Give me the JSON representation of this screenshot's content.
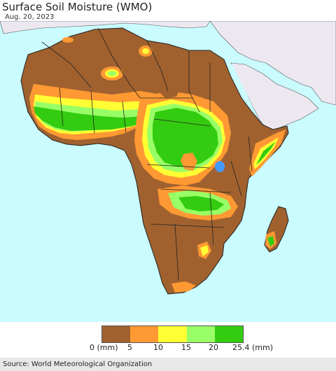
{
  "header": {
    "title": "Surface Soil Moisture (WMO)",
    "date": "Aug. 20, 2023"
  },
  "legend": {
    "labels": [
      "0 (mm)",
      "5",
      "10",
      "15",
      "20",
      "25.4 (mm)"
    ],
    "colors": [
      "#a0612f",
      "#ff9933",
      "#ffff33",
      "#99ff66",
      "#33cc11"
    ]
  },
  "map": {
    "ocean_color": "#c9fbff",
    "non_africa_land_color": "#ede8f0",
    "border_color": "#222222"
  },
  "footer": {
    "source": "Source: World Meteorological Organization"
  }
}
